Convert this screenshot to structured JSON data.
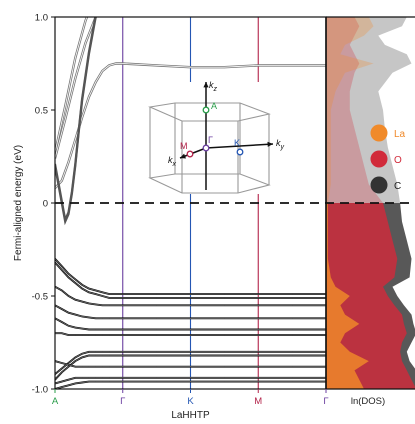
{
  "chart_data": {
    "type": "line",
    "ylabel": "Fermi-aligned energy (eV)",
    "xlabel": "LaHHTP",
    "ylim": [
      -1.0,
      1.0
    ],
    "yticks": [
      {
        "value": 1.0,
        "label": "1.0"
      },
      {
        "value": 0.5,
        "label": "0.5"
      },
      {
        "value": 0,
        "label": "0"
      },
      {
        "value": -0.5,
        "label": "-0.5"
      },
      {
        "value": -1.0,
        "label": "-1.0"
      }
    ],
    "kpath": [
      {
        "label": "A",
        "pos": 0,
        "color": "#2a9d4a"
      },
      {
        "label": "Γ",
        "pos": 1,
        "color": "#6b3fa0"
      },
      {
        "label": "K",
        "pos": 2,
        "color": "#2456b3"
      },
      {
        "label": "M",
        "pos": 3,
        "color": "#b3234a"
      },
      {
        "label": "Γ",
        "pos": 4,
        "color": "#6b3fa0"
      }
    ],
    "fermi_level": 0,
    "bands_upper": [
      {
        "x": [
          0,
          0.15,
          0.3,
          0.45,
          0.6,
          0.75,
          0.9,
          1.0,
          2.0,
          3.0,
          4.0
        ],
        "y": [
          0.27,
          0.52,
          0.78,
          0.98,
          1.12,
          1.22,
          1.25,
          1.25,
          1.25,
          1.25,
          1.25
        ]
      },
      {
        "x": [
          0,
          0.15,
          0.3,
          0.45,
          0.6,
          0.75,
          0.9,
          1.0,
          2.0,
          3.0,
          4.0
        ],
        "y": [
          0.24,
          0.45,
          0.67,
          0.86,
          1.0,
          1.1,
          1.15,
          1.16,
          1.16,
          1.16,
          1.16
        ]
      },
      {
        "x": [
          0,
          0.1,
          0.2,
          0.3,
          0.4,
          0.5,
          0.6,
          0.7,
          0.8,
          0.9,
          1.0,
          1.5,
          2.0,
          2.5,
          3.0,
          3.5,
          4.0
        ],
        "y": [
          0.08,
          0.12,
          0.22,
          0.34,
          0.46,
          0.57,
          0.65,
          0.71,
          0.74,
          0.75,
          0.75,
          0.74,
          0.73,
          0.73,
          0.74,
          0.74,
          0.74
        ]
      }
    ],
    "bands_cross": [
      {
        "x": [
          0,
          0.05,
          0.1,
          0.15,
          0.2,
          0.25,
          0.3,
          0.35,
          0.4,
          0.5,
          0.6,
          0.7
        ],
        "y": [
          0.2,
          0.1,
          0.0,
          -0.1,
          -0.06,
          0.05,
          0.2,
          0.38,
          0.55,
          0.8,
          1.0,
          1.15
        ]
      },
      {
        "x": [
          0,
          0.05,
          0.1,
          0.15,
          0.2,
          0.25,
          0.3,
          0.35,
          0.4,
          0.5,
          0.6,
          0.7
        ],
        "y": [
          0.21,
          0.11,
          0.01,
          -0.09,
          -0.05,
          0.06,
          0.21,
          0.39,
          0.56,
          0.81,
          1.01,
          1.16
        ]
      }
    ],
    "bands_valence": [
      {
        "x": [
          0,
          0.1,
          0.2,
          0.3,
          0.4,
          0.5,
          0.6,
          0.7,
          0.8,
          0.9,
          1.0,
          1.5,
          2.0,
          2.5,
          3.0,
          3.5,
          4.0
        ],
        "y": [
          -0.3,
          -0.34,
          -0.38,
          -0.41,
          -0.44,
          -0.46,
          -0.47,
          -0.48,
          -0.49,
          -0.49,
          -0.49,
          -0.49,
          -0.49,
          -0.49,
          -0.49,
          -0.49,
          -0.49
        ]
      },
      {
        "x": [
          0,
          0.1,
          0.2,
          0.3,
          0.4,
          0.5,
          0.6,
          0.7,
          0.8,
          0.9,
          1.0,
          1.5,
          2.0,
          2.5,
          3.0,
          3.5,
          4.0
        ],
        "y": [
          -0.32,
          -0.36,
          -0.4,
          -0.43,
          -0.46,
          -0.48,
          -0.49,
          -0.5,
          -0.51,
          -0.51,
          -0.51,
          -0.51,
          -0.51,
          -0.51,
          -0.51,
          -0.51,
          -0.51
        ]
      },
      {
        "x": [
          0,
          0.1,
          0.2,
          0.3,
          0.4,
          0.5,
          0.6,
          0.7,
          0.8,
          0.9,
          1.0,
          1.5,
          2.0,
          2.5,
          3.0,
          3.5,
          4.0
        ],
        "y": [
          -0.45,
          -0.47,
          -0.5,
          -0.52,
          -0.53,
          -0.54,
          -0.545,
          -0.55,
          -0.55,
          -0.55,
          -0.55,
          -0.55,
          -0.55,
          -0.55,
          -0.55,
          -0.55,
          -0.55
        ]
      },
      {
        "x": [
          0,
          0.1,
          0.2,
          0.3,
          0.4,
          0.5,
          0.6,
          0.7,
          0.8,
          0.9,
          1.0,
          1.5,
          2.0,
          2.5,
          3.0,
          3.5,
          4.0
        ],
        "y": [
          -0.55,
          -0.57,
          -0.59,
          -0.6,
          -0.61,
          -0.615,
          -0.62,
          -0.62,
          -0.62,
          -0.62,
          -0.62,
          -0.62,
          -0.62,
          -0.62,
          -0.62,
          -0.62,
          -0.62
        ]
      },
      {
        "x": [
          0,
          0.1,
          0.2,
          0.3,
          0.4,
          0.5,
          0.6,
          0.7,
          0.8,
          0.9,
          1.0,
          1.5,
          2.0,
          2.5,
          3.0,
          3.5,
          4.0
        ],
        "y": [
          -0.62,
          -0.64,
          -0.66,
          -0.67,
          -0.675,
          -0.68,
          -0.68,
          -0.68,
          -0.68,
          -0.68,
          -0.68,
          -0.68,
          -0.68,
          -0.68,
          -0.68,
          -0.68,
          -0.68
        ]
      },
      {
        "x": [
          0,
          0.1,
          0.2,
          0.3,
          0.4,
          0.5,
          0.6,
          0.7,
          0.8,
          0.9,
          1.0,
          1.5,
          2.0,
          2.5,
          3.0,
          3.5,
          4.0
        ],
        "y": [
          -0.7,
          -0.7,
          -0.71,
          -0.71,
          -0.71,
          -0.71,
          -0.71,
          -0.71,
          -0.71,
          -0.71,
          -0.71,
          -0.71,
          -0.71,
          -0.71,
          -0.71,
          -0.71,
          -0.71
        ]
      },
      {
        "x": [
          0,
          0.1,
          0.2,
          0.3,
          0.4,
          0.5,
          0.6,
          0.7,
          0.8,
          0.9,
          1.0,
          1.5,
          2.0,
          2.5,
          3.0,
          3.5,
          4.0
        ],
        "y": [
          -0.92,
          -0.89,
          -0.86,
          -0.83,
          -0.81,
          -0.8,
          -0.8,
          -0.8,
          -0.8,
          -0.8,
          -0.8,
          -0.8,
          -0.8,
          -0.8,
          -0.8,
          -0.8,
          -0.8
        ]
      },
      {
        "x": [
          0,
          0.1,
          0.2,
          0.3,
          0.4,
          0.5,
          0.6,
          0.7,
          0.8,
          0.9,
          1.0,
          1.5,
          2.0,
          2.5,
          3.0,
          3.5,
          4.0
        ],
        "y": [
          -0.95,
          -0.91,
          -0.88,
          -0.85,
          -0.83,
          -0.82,
          -0.82,
          -0.82,
          -0.82,
          -0.82,
          -0.82,
          -0.82,
          -0.82,
          -0.82,
          -0.82,
          -0.82,
          -0.82
        ]
      },
      {
        "x": [
          0,
          0.1,
          0.2,
          0.3,
          0.4,
          0.5,
          0.6,
          0.7,
          0.8,
          0.9,
          1.0,
          1.5,
          2.0,
          2.5,
          3.0,
          3.5,
          4.0
        ],
        "y": [
          -0.85,
          -0.86,
          -0.87,
          -0.88,
          -0.88,
          -0.88,
          -0.88,
          -0.88,
          -0.88,
          -0.88,
          -0.88,
          -0.88,
          -0.88,
          -0.88,
          -0.88,
          -0.88,
          -0.88
        ]
      },
      {
        "x": [
          0,
          0.1,
          0.2,
          0.3,
          0.4,
          0.5,
          0.6,
          0.7,
          0.8,
          0.9,
          1.0,
          1.5,
          2.0,
          2.5,
          3.0,
          3.5,
          4.0
        ],
        "y": [
          -0.97,
          -0.96,
          -0.95,
          -0.94,
          -0.94,
          -0.94,
          -0.94,
          -0.94,
          -0.94,
          -0.94,
          -0.94,
          -0.94,
          -0.94,
          -0.94,
          -0.94,
          -0.94,
          -0.94
        ]
      },
      {
        "x": [
          0,
          0.1,
          0.2,
          0.3,
          0.4,
          0.5,
          0.6,
          0.7,
          0.8,
          0.9,
          1.0,
          1.5,
          2.0,
          2.5,
          3.0,
          3.5,
          4.0
        ],
        "y": [
          -1.0,
          -0.99,
          -0.98,
          -0.97,
          -0.965,
          -0.96,
          -0.96,
          -0.96,
          -0.96,
          -0.96,
          -0.96,
          -0.96,
          -0.96,
          -0.96,
          -0.96,
          -0.96,
          -0.96
        ]
      }
    ],
    "dos": {
      "xlabel": "ln(DOS)",
      "energies": [
        1.0,
        0.95,
        0.9,
        0.85,
        0.8,
        0.75,
        0.7,
        0.6,
        0.5,
        0.4,
        0.3,
        0.2,
        0.1,
        0.0,
        -0.1,
        -0.2,
        -0.3,
        -0.4,
        -0.45,
        -0.5,
        -0.55,
        -0.6,
        -0.65,
        -0.7,
        -0.75,
        -0.8,
        -0.85,
        -0.9,
        -0.95,
        -1.0
      ],
      "series": [
        {
          "name": "C",
          "color": "#333333",
          "values": [
            0.85,
            0.8,
            0.55,
            0.62,
            0.85,
            0.9,
            0.7,
            0.55,
            0.6,
            0.62,
            0.65,
            0.7,
            0.75,
            0.78,
            0.8,
            0.85,
            0.9,
            0.88,
            0.7,
            0.75,
            0.82,
            0.9,
            0.92,
            0.95,
            0.9,
            0.85,
            0.88,
            0.95,
            0.98,
            1.0
          ]
        },
        {
          "name": "O",
          "color": "#d12a3a",
          "values": [
            0.3,
            0.35,
            0.3,
            0.25,
            0.3,
            0.35,
            0.3,
            0.25,
            0.25,
            0.3,
            0.35,
            0.4,
            0.45,
            0.6,
            0.65,
            0.7,
            0.75,
            0.72,
            0.6,
            0.65,
            0.72,
            0.8,
            0.82,
            0.85,
            0.8,
            0.78,
            0.8,
            0.85,
            0.9,
            0.95
          ]
        },
        {
          "name": "La",
          "color": "#f08a2a",
          "values": [
            0.45,
            0.5,
            0.4,
            0.2,
            0.15,
            0.5,
            0.2,
            0.1,
            0.05,
            0.05,
            0.05,
            0.05,
            0.05,
            0.02,
            0.02,
            0.02,
            0.02,
            0.05,
            0.1,
            0.25,
            0.15,
            0.2,
            0.35,
            0.2,
            0.15,
            0.25,
            0.45,
            0.3,
            0.35,
            0.4
          ]
        }
      ]
    },
    "inset": {
      "labels": [
        {
          "text": "k",
          "sub": "z",
          "color": "#111111"
        },
        {
          "text": "A",
          "color": "#2a9d4a"
        },
        {
          "text": "M",
          "color": "#b3234a"
        },
        {
          "text": "Γ",
          "color": "#6b3fa0"
        },
        {
          "text": "K",
          "color": "#2456b3"
        },
        {
          "text": "k",
          "sub": "y",
          "color": "#111111"
        },
        {
          "text": "k",
          "sub": "x",
          "color": "#111111"
        }
      ]
    }
  }
}
